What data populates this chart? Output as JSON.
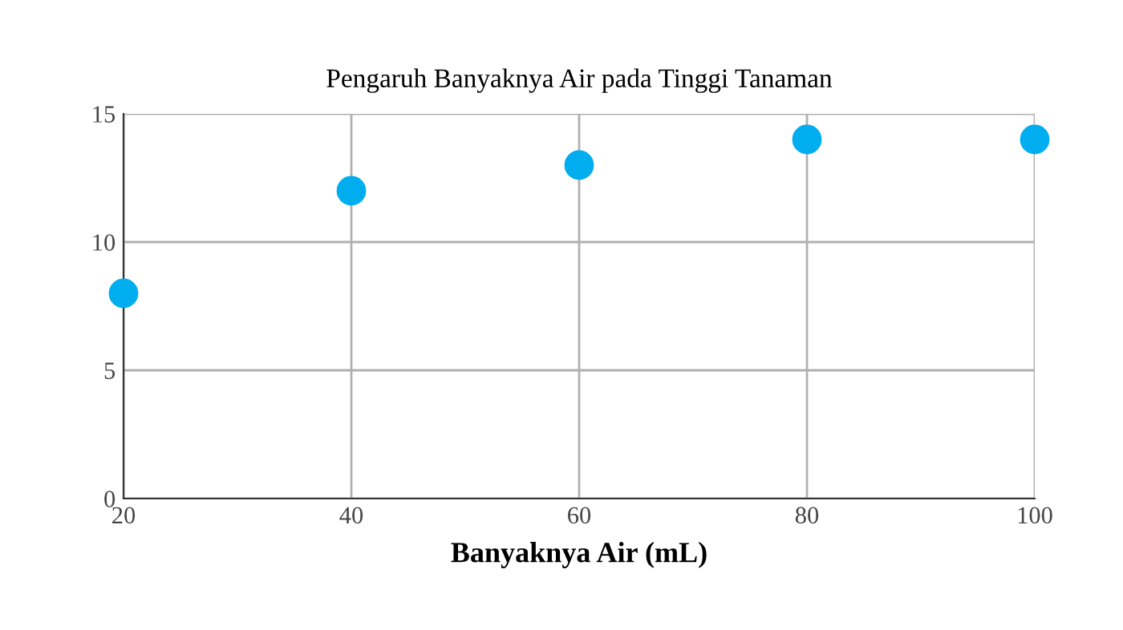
{
  "chart_data": {
    "type": "scatter",
    "title": "Pengaruh Banyaknya Air pada Tinggi Tanaman",
    "xlabel": "Banyaknya Air (mL)",
    "x": [
      20,
      40,
      60,
      80,
      100
    ],
    "series": [
      {
        "color": "#00aeef",
        "values": [
          8,
          12,
          13,
          14,
          14
        ]
      }
    ],
    "xlim": [
      20,
      100
    ],
    "xticks": [
      20,
      40,
      60,
      80,
      100
    ],
    "ylim": [
      0,
      15
    ],
    "yticks": [
      0,
      5,
      10,
      15
    ],
    "grid": true,
    "marker": "circle",
    "legend": false
  }
}
